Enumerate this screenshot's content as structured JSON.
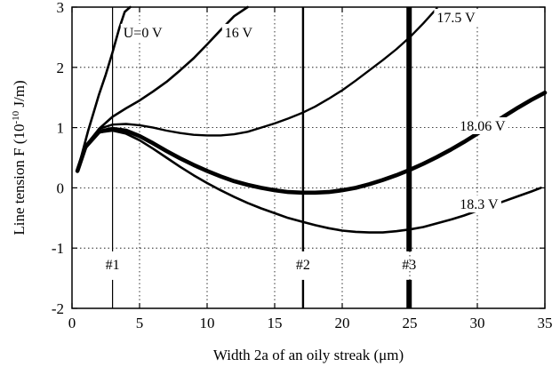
{
  "chart_data": {
    "type": "line",
    "title": "",
    "xlabel": "Width 2a of an oily streak   (μm)",
    "ylabel_main": "Line tension F  (10",
    "ylabel_sup": "-10",
    "ylabel_tail": " J/m)",
    "xlim": [
      0,
      35
    ],
    "ylim": [
      -2,
      3
    ],
    "xticks": [
      0,
      5,
      10,
      15,
      20,
      25,
      30,
      35
    ],
    "yticks": [
      -2,
      -1,
      0,
      1,
      2,
      3
    ],
    "grid": true,
    "series": [
      {
        "name": "U=0 V",
        "x": [
          0.4,
          0.8,
          1.2,
          1.6,
          2.0,
          2.5,
          3.0,
          3.5,
          3.9,
          4.3
        ],
        "y": [
          0.28,
          0.62,
          0.95,
          1.25,
          1.55,
          1.88,
          2.25,
          2.65,
          2.92,
          3.0
        ]
      },
      {
        "name": "16 V",
        "x": [
          0.4,
          1.0,
          2.0,
          3.0,
          4.0,
          5.0,
          6.0,
          7.0,
          8.0,
          9.0,
          10.0,
          11.0,
          12.0,
          13.0
        ],
        "y": [
          0.28,
          0.65,
          0.98,
          1.18,
          1.32,
          1.45,
          1.6,
          1.76,
          1.95,
          2.15,
          2.38,
          2.62,
          2.85,
          3.0
        ]
      },
      {
        "name": "17.5 V",
        "x": [
          0.4,
          1.0,
          2.0,
          3.0,
          4.0,
          5.0,
          6.0,
          7.0,
          8.0,
          9.0,
          10.0,
          11.0,
          12.0,
          13.0,
          14.0,
          15.0,
          16.0,
          17.0,
          18.0,
          19.0,
          20.0,
          21.0,
          22.0,
          23.0,
          24.0,
          25.0,
          26.0,
          27.0
        ],
        "y": [
          0.28,
          0.7,
          0.98,
          1.05,
          1.06,
          1.04,
          1.0,
          0.95,
          0.91,
          0.88,
          0.87,
          0.87,
          0.89,
          0.93,
          1.0,
          1.07,
          1.15,
          1.24,
          1.35,
          1.48,
          1.62,
          1.78,
          1.95,
          2.12,
          2.3,
          2.5,
          2.73,
          2.98
        ]
      },
      {
        "name": "18.06 V",
        "x": [
          0.4,
          1.0,
          2.0,
          3.0,
          4.0,
          5.0,
          6.0,
          7.0,
          8.0,
          9.0,
          10.0,
          11.0,
          12.0,
          13.0,
          14.0,
          15.0,
          16.0,
          17.0,
          18.0,
          19.0,
          20.0,
          21.0,
          22.0,
          23.0,
          24.0,
          25.0,
          26.0,
          27.0,
          28.0,
          29.0,
          30.0,
          31.0,
          32.0,
          33.0,
          34.0,
          35.0
        ],
        "y": [
          0.28,
          0.68,
          0.93,
          0.98,
          0.95,
          0.86,
          0.74,
          0.61,
          0.49,
          0.38,
          0.28,
          0.19,
          0.11,
          0.05,
          0.0,
          -0.04,
          -0.07,
          -0.08,
          -0.08,
          -0.07,
          -0.04,
          0.0,
          0.06,
          0.13,
          0.21,
          0.3,
          0.4,
          0.51,
          0.63,
          0.76,
          0.9,
          1.04,
          1.19,
          1.33,
          1.46,
          1.58
        ]
      },
      {
        "name": "18.3 V",
        "x": [
          0.4,
          1.0,
          2.0,
          3.0,
          4.0,
          5.0,
          6.0,
          7.0,
          8.0,
          9.0,
          10.0,
          11.0,
          12.0,
          13.0,
          14.0,
          15.0,
          16.0,
          17.0,
          18.0,
          19.0,
          20.0,
          21.0,
          22.0,
          23.0,
          24.0,
          25.0,
          26.0,
          27.0,
          28.0,
          29.0,
          30.0,
          31.0,
          32.0,
          33.0,
          34.0,
          34.7
        ],
        "y": [
          0.28,
          0.68,
          0.92,
          0.95,
          0.9,
          0.79,
          0.65,
          0.5,
          0.35,
          0.21,
          0.08,
          -0.04,
          -0.15,
          -0.25,
          -0.34,
          -0.42,
          -0.5,
          -0.56,
          -0.62,
          -0.67,
          -0.71,
          -0.73,
          -0.74,
          -0.74,
          -0.72,
          -0.69,
          -0.65,
          -0.59,
          -0.53,
          -0.46,
          -0.38,
          -0.3,
          -0.22,
          -0.14,
          -0.06,
          0.0
        ]
      }
    ],
    "series_labels": [
      {
        "text": "U=0 V",
        "x": 3.8,
        "y": 2.5
      },
      {
        "text": "16 V",
        "x": 11.3,
        "y": 2.5
      },
      {
        "text": "17.5 V",
        "x": 27.0,
        "y": 2.75
      },
      {
        "text": "18.06 V",
        "x": 28.7,
        "y": 0.95
      },
      {
        "text": "18.3 V",
        "x": 28.7,
        "y": -0.35
      }
    ],
    "markers": [
      {
        "label": "#1",
        "x": 3.0,
        "weight": "thin"
      },
      {
        "label": "#2",
        "x": 17.1,
        "weight": "medium"
      },
      {
        "label": "#3",
        "x": 24.95,
        "weight": "thick"
      }
    ],
    "marker_label_y": -1.35
  }
}
